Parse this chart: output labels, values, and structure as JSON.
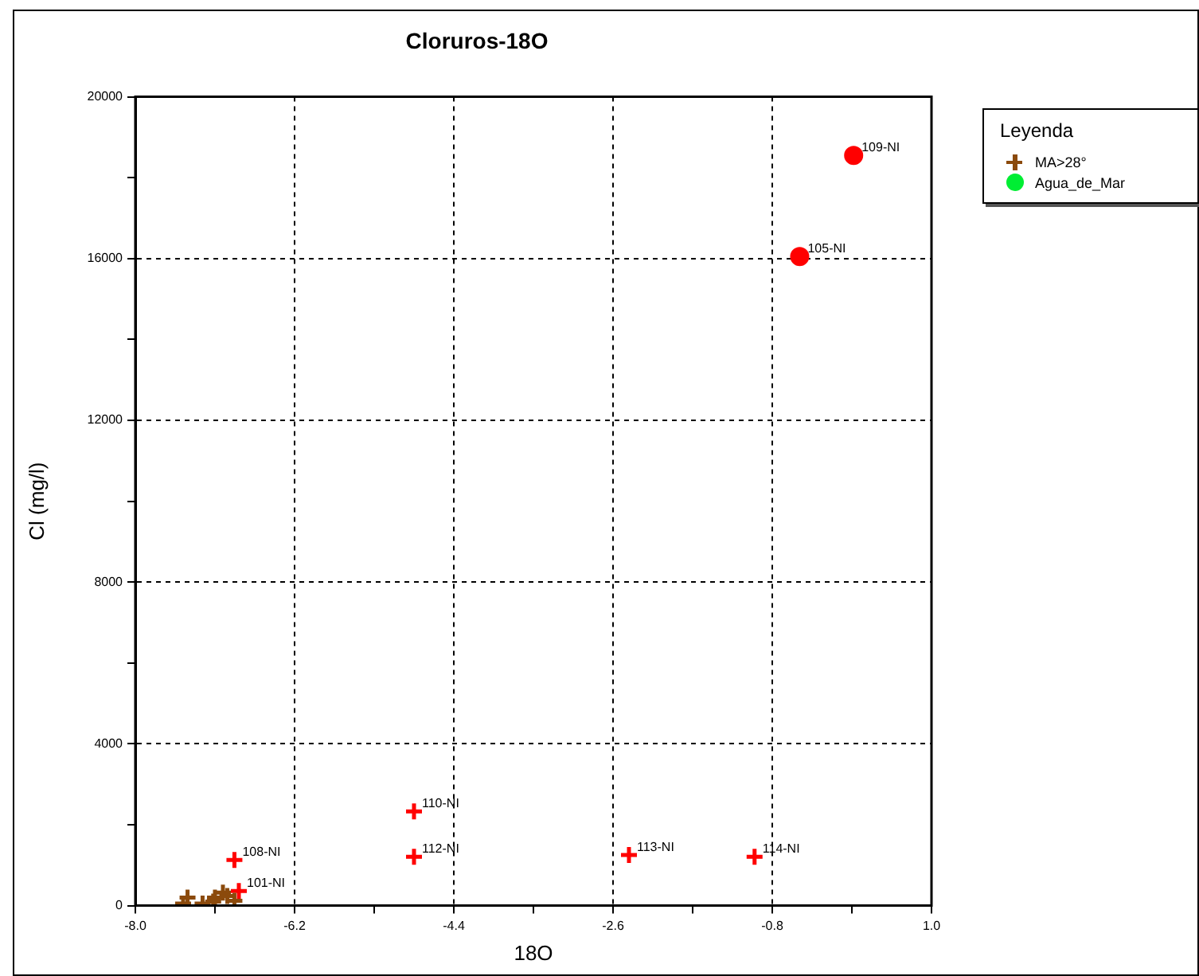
{
  "chart_data": {
    "type": "scatter",
    "title": "Cloruros-18O",
    "xlabel": "18O",
    "ylabel": "Cl (mg/l)",
    "legend_title": "Leyenda",
    "legend": "top right",
    "grid": true,
    "xlim": [
      -8,
      1
    ],
    "ylim": [
      0,
      20000
    ],
    "xticks": [
      {
        "value": -8,
        "label": "-8.0"
      },
      {
        "value": -7.1,
        "label": null
      },
      -6.2,
      {
        "value": -5.3,
        "label": null
      },
      -4.4,
      {
        "value": -3.5,
        "label": null
      },
      -2.6,
      {
        "value": -1.7,
        "label": null
      },
      -0.8,
      {
        "value": 0.1,
        "label": null
      },
      {
        "value": 1,
        "label": "1.0"
      }
    ],
    "yticks": [
      0,
      {
        "value": 2000,
        "label": null
      },
      4000,
      {
        "value": 6000,
        "label": null
      },
      8000,
      {
        "value": 10000,
        "label": null
      },
      12000,
      {
        "value": 14000,
        "label": null
      },
      16000,
      {
        "value": 18000,
        "label": null
      },
      20000
    ],
    "series": [
      {
        "name": "MA>28°",
        "color": "#8b4a0c",
        "marker": "cross",
        "x": [
          -7.46,
          -7.41,
          -7.24,
          -7.12,
          -7.1,
          -7.01,
          -6.96,
          -6.88
        ],
        "values": [
          50,
          200,
          50,
          100,
          200,
          320,
          240,
          120
        ]
      },
      {
        "name": "Agua_de_Mar",
        "color": "#00ee33",
        "marker": "circle"
      },
      {
        "color": "#ff0000",
        "marker": "cross",
        "x": [
          -6.88,
          -6.83,
          -4.85,
          -4.85,
          -2.42,
          -1.0
        ],
        "values": [
          1130,
          360,
          2330,
          1210,
          1250,
          1210
        ]
      },
      {
        "color": "#ff0000",
        "marker": "circle",
        "x": [
          -0.49,
          0.12
        ],
        "values": [
          16050,
          18550
        ]
      }
    ],
    "annotations": [
      {
        "text": "108-NI",
        "x": -6.88,
        "y": 1130
      },
      {
        "text": "101-NI",
        "x": -6.83,
        "y": 360
      },
      {
        "text": "110-NI",
        "x": -4.85,
        "y": 2330
      },
      {
        "text": "112-NI",
        "x": -4.85,
        "y": 1210
      },
      {
        "text": "113-NI",
        "x": -2.42,
        "y": 1250
      },
      {
        "text": "114-NI",
        "x": -1.0,
        "y": 1210
      },
      {
        "text": "105-NI",
        "x": -0.49,
        "y": 16050
      },
      {
        "text": "109-NI",
        "x": 0.12,
        "y": 18550
      }
    ]
  }
}
